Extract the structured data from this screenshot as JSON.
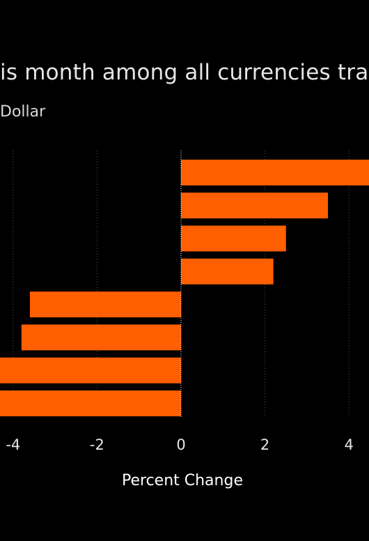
{
  "chart_data": {
    "type": "bar",
    "orientation": "horizontal",
    "title": "is month among all currencies tra",
    "subtitle": "Dollar",
    "xlabel": "Percent Change",
    "ylabel": "",
    "xlim": [
      -4.3,
      4.5
    ],
    "xticks": [
      -4,
      -2,
      0,
      2,
      4
    ],
    "grid": "vertical-dotted",
    "values": [
      5.0,
      3.5,
      2.5,
      2.2,
      -3.6,
      -3.8,
      -4.5,
      -4.6
    ],
    "bar_color": "#ff5f00",
    "zero_line_color": "#ffffff",
    "grid_color": "#555555"
  }
}
